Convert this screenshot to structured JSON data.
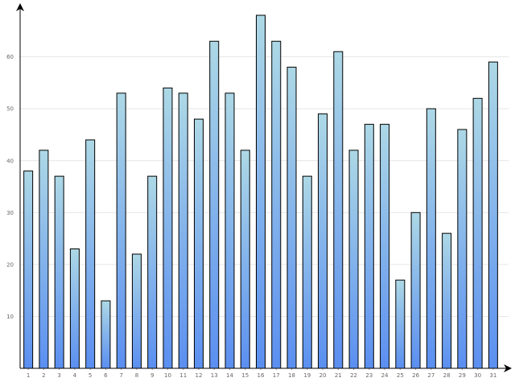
{
  "chart_data": {
    "type": "bar",
    "categories": [
      "1",
      "2",
      "3",
      "4",
      "5",
      "6",
      "7",
      "8",
      "9",
      "10",
      "11",
      "12",
      "13",
      "14",
      "15",
      "16",
      "17",
      "18",
      "19",
      "20",
      "21",
      "22",
      "23",
      "24",
      "25",
      "26",
      "27",
      "28",
      "29",
      "30",
      "31"
    ],
    "values": [
      38,
      42,
      37,
      23,
      44,
      13,
      53,
      22,
      37,
      54,
      53,
      48,
      63,
      53,
      42,
      68,
      63,
      58,
      37,
      49,
      61,
      42,
      47,
      47,
      17,
      30,
      50,
      26,
      46,
      52,
      59
    ],
    "ylim": [
      0,
      68
    ],
    "yticks": [
      10,
      20,
      30,
      40,
      50,
      60
    ],
    "grid": true,
    "legend": "none",
    "colors": {
      "bar_top": "#add8e6",
      "bar_bottom": "#5b8ff0",
      "bar_stroke": "#000000",
      "grid": "#e6e6e6"
    }
  }
}
